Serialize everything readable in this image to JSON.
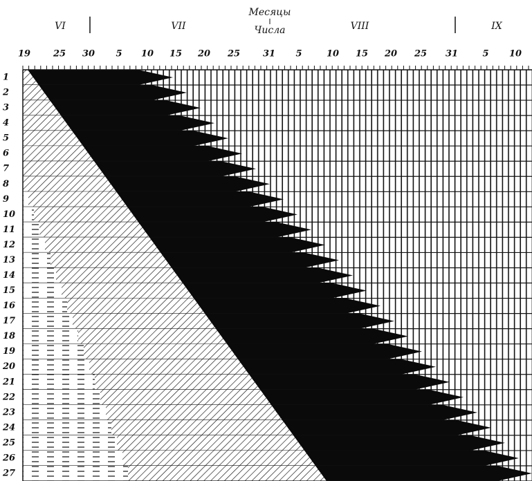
{
  "header": {
    "months_title": "Месяцы",
    "days_title": "Числа"
  },
  "months": [
    "VI",
    "VII",
    "VIII",
    "IX"
  ],
  "days": [
    "19",
    "25",
    "30",
    "5",
    "10",
    "15",
    "20",
    "25",
    "31",
    "5",
    "10",
    "15",
    "20",
    "25",
    "31",
    "5",
    "10"
  ],
  "rows": [
    "1",
    "2",
    "3",
    "4",
    "5",
    "6",
    "7",
    "8",
    "9",
    "10",
    "11",
    "12",
    "13",
    "14",
    "15",
    "16",
    "17",
    "18",
    "19",
    "20",
    "21",
    "22",
    "23",
    "24",
    "25",
    "26",
    "27"
  ]
}
